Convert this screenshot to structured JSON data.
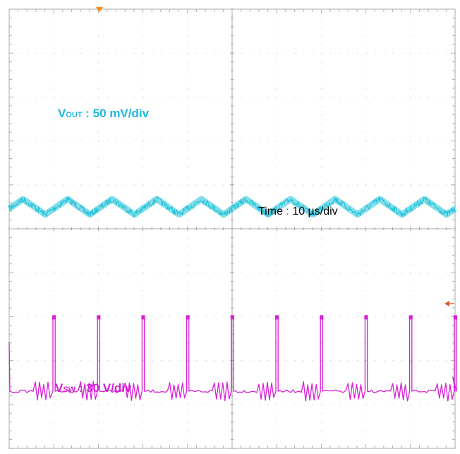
{
  "chart_data": {
    "type": "line",
    "title": "",
    "grid": true,
    "x_divisions": 10,
    "y_divisions": 10,
    "timebase": {
      "label": "Time",
      "separator": " : ",
      "value": "10 µs/div"
    },
    "series": [
      {
        "name": "VOUT",
        "label_main": "V",
        "label_sub": "OUT",
        "scale": " : 50 mV/div",
        "color": "#1fc2d9",
        "waveform": "triangular ripple",
        "period_div": 1.0,
        "ripple_pp_div": 0.35,
        "baseline_div": 5.5
      },
      {
        "name": "VSW",
        "label_main": "V",
        "label_sub": "SW",
        "scale": " : 30 V/div",
        "color": "#d81ed6",
        "waveform": "pulse train with ringing",
        "period_div": 1.0,
        "pulse_width_div": 0.05,
        "pulse_height_div": 1.7,
        "baseline_div": 1.3
      }
    ],
    "markers": {
      "trigger_level_arrow_color": "#e8521e",
      "top_marker_color": "#ff8c00"
    }
  }
}
